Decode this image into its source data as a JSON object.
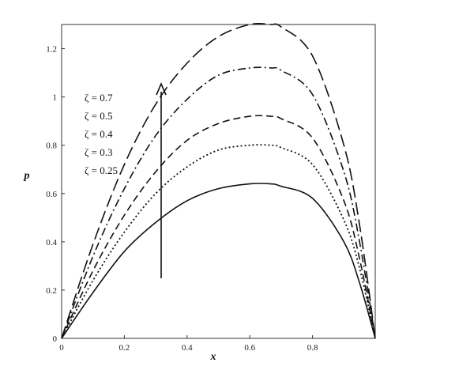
{
  "chart_data": {
    "type": "line",
    "title": "",
    "xlabel": "x",
    "ylabel": "p",
    "xlim": [
      0,
      1
    ],
    "ylim": [
      0,
      1.3
    ],
    "x_ticks": [
      "0",
      "0.2",
      "0.4",
      "0.6",
      "0.8"
    ],
    "y_ticks": [
      "0",
      "0.2",
      "0.4",
      "0.6",
      "0.8",
      "1",
      "1.2"
    ],
    "grid": false,
    "legend_placement": "upper-left",
    "x": [
      0,
      0.1,
      0.2,
      0.3,
      0.4,
      0.5,
      0.6,
      0.667,
      0.7,
      0.8,
      0.9,
      0.95,
      1.0
    ],
    "series": [
      {
        "name": "ζ = 0.7",
        "style": "long-dash",
        "values": [
          0,
          0.39,
          0.72,
          0.97,
          1.14,
          1.25,
          1.3,
          1.3,
          1.29,
          1.17,
          0.8,
          0.47,
          0
        ]
      },
      {
        "name": "ζ = 0.5",
        "style": "dash-dot",
        "values": [
          0,
          0.34,
          0.62,
          0.84,
          0.99,
          1.09,
          1.12,
          1.12,
          1.11,
          1.01,
          0.69,
          0.4,
          0
        ]
      },
      {
        "name": "ζ = 0.4",
        "style": "dash",
        "values": [
          0,
          0.28,
          0.51,
          0.69,
          0.82,
          0.89,
          0.92,
          0.92,
          0.91,
          0.83,
          0.57,
          0.33,
          0
        ]
      },
      {
        "name": "ζ = 0.3",
        "style": "dot",
        "values": [
          0,
          0.24,
          0.44,
          0.6,
          0.71,
          0.78,
          0.8,
          0.8,
          0.79,
          0.72,
          0.49,
          0.29,
          0
        ]
      },
      {
        "name": "ζ = 0.25",
        "style": "solid",
        "values": [
          0,
          0.19,
          0.36,
          0.48,
          0.57,
          0.62,
          0.64,
          0.64,
          0.63,
          0.58,
          0.4,
          0.23,
          0
        ]
      }
    ],
    "annotations": [
      {
        "type": "arrow",
        "direction": "up",
        "meaning": "increasing ζ"
      }
    ]
  }
}
